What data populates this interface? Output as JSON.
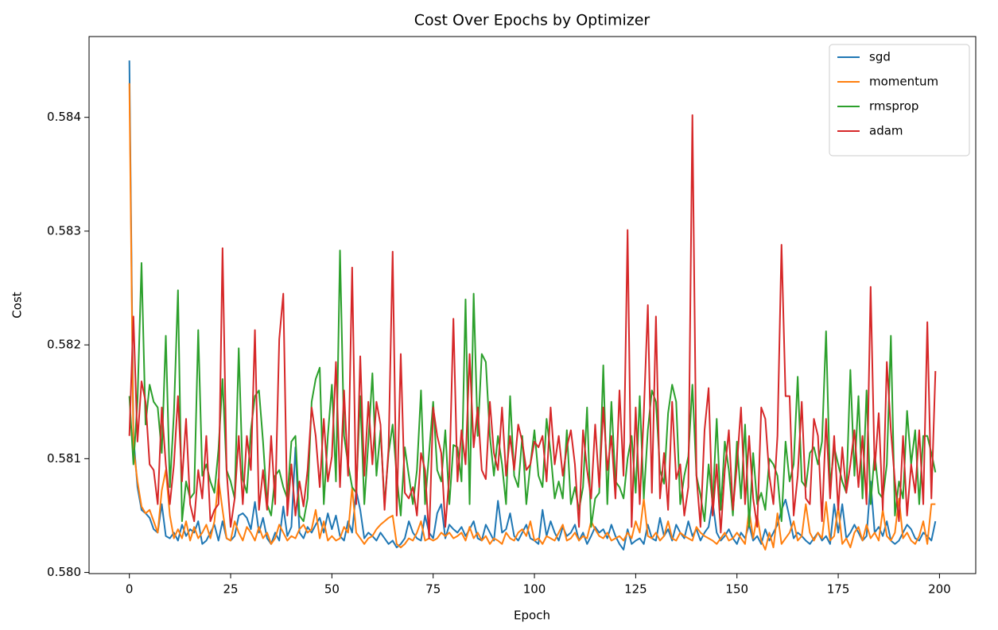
{
  "chart_data": {
    "type": "line",
    "title": "Cost Over Epochs by Optimizer",
    "xlabel": "Epoch",
    "ylabel": "Cost",
    "x": [
      0,
      1,
      2,
      3,
      4,
      5,
      6,
      7,
      8,
      9,
      10,
      11,
      12,
      13,
      14,
      15,
      16,
      17,
      18,
      19,
      20,
      21,
      22,
      23,
      24,
      25,
      26,
      27,
      28,
      29,
      30,
      31,
      32,
      33,
      34,
      35,
      36,
      37,
      38,
      39,
      40,
      41,
      42,
      43,
      44,
      45,
      46,
      47,
      48,
      49,
      50,
      51,
      52,
      53,
      54,
      55,
      56,
      57,
      58,
      59,
      60,
      61,
      62,
      63,
      64,
      65,
      66,
      67,
      68,
      69,
      70,
      71,
      72,
      73,
      74,
      75,
      76,
      77,
      78,
      79,
      80,
      81,
      82,
      83,
      84,
      85,
      86,
      87,
      88,
      89,
      90,
      91,
      92,
      93,
      94,
      95,
      96,
      97,
      98,
      99,
      100,
      101,
      102,
      103,
      104,
      105,
      106,
      107,
      108,
      109,
      110,
      111,
      112,
      113,
      114,
      115,
      116,
      117,
      118,
      119,
      120,
      121,
      122,
      123,
      124,
      125,
      126,
      127,
      128,
      129,
      130,
      131,
      132,
      133,
      134,
      135,
      136,
      137,
      138,
      139,
      140,
      141,
      142,
      143,
      144,
      145,
      146,
      147,
      148,
      149,
      150,
      151,
      152,
      153,
      154,
      155,
      156,
      157,
      158,
      159,
      160,
      161,
      162,
      163,
      164,
      165,
      166,
      167,
      168,
      169,
      170,
      171,
      172,
      173,
      174,
      175,
      176,
      177,
      178,
      179,
      180,
      181,
      182,
      183,
      184,
      185,
      186,
      187,
      188,
      189,
      190,
      191,
      192,
      193,
      194,
      195,
      196,
      197,
      198,
      199
    ],
    "series": [
      {
        "name": "sgd",
        "color": "#1f77b4",
        "values": [
          0.5845,
          0.5812,
          0.58075,
          0.58055,
          0.58052,
          0.58048,
          0.58038,
          0.58035,
          0.5806,
          0.58032,
          0.5803,
          0.58035,
          0.58028,
          0.58042,
          0.58032,
          0.58038,
          0.58035,
          0.58045,
          0.58025,
          0.58028,
          0.58035,
          0.58042,
          0.58028,
          0.58045,
          0.5803,
          0.58028,
          0.58032,
          0.5805,
          0.58052,
          0.58048,
          0.58038,
          0.58062,
          0.58035,
          0.58048,
          0.5803,
          0.58025,
          0.58035,
          0.58028,
          0.58058,
          0.58032,
          0.5804,
          0.5811,
          0.58035,
          0.5803,
          0.5804,
          0.58035,
          0.58042,
          0.58048,
          0.58035,
          0.58052,
          0.58038,
          0.5805,
          0.58032,
          0.58028,
          0.58045,
          0.58035,
          0.58072,
          0.58055,
          0.5803,
          0.58035,
          0.58032,
          0.58028,
          0.58035,
          0.5803,
          0.58025,
          0.58028,
          0.58022,
          0.58025,
          0.5803,
          0.58045,
          0.58035,
          0.5803,
          0.58028,
          0.5805,
          0.58035,
          0.5803,
          0.58052,
          0.5806,
          0.5803,
          0.58042,
          0.58038,
          0.58035,
          0.5804,
          0.58032,
          0.58038,
          0.58045,
          0.5803,
          0.58028,
          0.58042,
          0.58035,
          0.58028,
          0.58063,
          0.58035,
          0.58038,
          0.58052,
          0.58032,
          0.58028,
          0.58035,
          0.58042,
          0.5803,
          0.58028,
          0.58025,
          0.58055,
          0.58032,
          0.58045,
          0.58035,
          0.58028,
          0.5804,
          0.58032,
          0.58035,
          0.58042,
          0.58028,
          0.58035,
          0.58025,
          0.58032,
          0.5804,
          0.58035,
          0.58038,
          0.5803,
          0.58042,
          0.58032,
          0.58025,
          0.5802,
          0.58038,
          0.58025,
          0.58028,
          0.5803,
          0.58025,
          0.58042,
          0.5803,
          0.58028,
          0.58048,
          0.58032,
          0.58038,
          0.58028,
          0.58042,
          0.58035,
          0.5803,
          0.58045,
          0.58032,
          0.58038,
          0.58028,
          0.58035,
          0.5804,
          0.58062,
          0.58035,
          0.58028,
          0.58032,
          0.58038,
          0.5803,
          0.58025,
          0.58035,
          0.5803,
          0.58042,
          0.58028,
          0.58032,
          0.58025,
          0.58038,
          0.58028,
          0.58035,
          0.58042,
          0.58055,
          0.58064,
          0.58048,
          0.5803,
          0.58035,
          0.58032,
          0.58028,
          0.58025,
          0.5803,
          0.58035,
          0.58028,
          0.58032,
          0.58025,
          0.5806,
          0.58035,
          0.5806,
          0.5803,
          0.58035,
          0.58042,
          0.58035,
          0.58028,
          0.58032,
          0.5808,
          0.58035,
          0.5804,
          0.58032,
          0.58045,
          0.58028,
          0.58025,
          0.58028,
          0.58035,
          0.58042,
          0.58038,
          0.5803,
          0.58028,
          0.58035,
          0.58032,
          0.58028,
          0.58045
        ]
      },
      {
        "name": "momentum",
        "color": "#ff7f0e",
        "values": [
          0.5843,
          0.5811,
          0.5808,
          0.58058,
          0.58052,
          0.58055,
          0.58045,
          0.58035,
          0.58072,
          0.5809,
          0.5805,
          0.5803,
          0.58038,
          0.5803,
          0.58045,
          0.58028,
          0.5804,
          0.5803,
          0.58035,
          0.58042,
          0.5803,
          0.58045,
          0.58082,
          0.58055,
          0.5803,
          0.58028,
          0.58045,
          0.58035,
          0.58028,
          0.5804,
          0.58035,
          0.58028,
          0.5804,
          0.5803,
          0.58035,
          0.58025,
          0.5803,
          0.58042,
          0.58035,
          0.58028,
          0.58032,
          0.5803,
          0.58038,
          0.58042,
          0.58035,
          0.58038,
          0.58055,
          0.5803,
          0.58045,
          0.58028,
          0.58032,
          0.58028,
          0.5803,
          0.5804,
          0.58035,
          0.58075,
          0.58035,
          0.5803,
          0.58025,
          0.5803,
          0.58032,
          0.58038,
          0.58042,
          0.58045,
          0.58048,
          0.5805,
          0.58025,
          0.58022,
          0.58025,
          0.5803,
          0.58028,
          0.58035,
          0.58045,
          0.58028,
          0.5803,
          0.58028,
          0.5803,
          0.58035,
          0.58032,
          0.58035,
          0.5803,
          0.58032,
          0.58035,
          0.58028,
          0.5804,
          0.5803,
          0.58035,
          0.58028,
          0.58032,
          0.58025,
          0.5803,
          0.58028,
          0.58025,
          0.58035,
          0.5803,
          0.58028,
          0.58035,
          0.58038,
          0.58032,
          0.58045,
          0.58028,
          0.5803,
          0.58025,
          0.58032,
          0.5803,
          0.58028,
          0.58035,
          0.58042,
          0.58028,
          0.5803,
          0.58035,
          0.58028,
          0.58032,
          0.5803,
          0.58045,
          0.58038,
          0.58032,
          0.5803,
          0.58035,
          0.58028,
          0.5803,
          0.58032,
          0.58028,
          0.58035,
          0.5803,
          0.58045,
          0.58035,
          0.58065,
          0.58032,
          0.5803,
          0.58035,
          0.58028,
          0.58032,
          0.58045,
          0.5803,
          0.58028,
          0.58035,
          0.58032,
          0.5803,
          0.58028,
          0.5804,
          0.58035,
          0.58032,
          0.5803,
          0.58028,
          0.58025,
          0.5803,
          0.58035,
          0.58028,
          0.5803,
          0.58035,
          0.5803,
          0.58025,
          0.58055,
          0.5803,
          0.5805,
          0.58028,
          0.5802,
          0.58035,
          0.58022,
          0.58052,
          0.58025,
          0.5803,
          0.58035,
          0.58045,
          0.58028,
          0.58032,
          0.5806,
          0.58035,
          0.58028,
          0.58035,
          0.5803,
          0.58062,
          0.58028,
          0.58032,
          0.58058,
          0.58025,
          0.5803,
          0.58022,
          0.58035,
          0.5804,
          0.58028,
          0.58042,
          0.5803,
          0.58035,
          0.58028,
          0.58055,
          0.58032,
          0.58028,
          0.58035,
          0.58065,
          0.5803,
          0.58035,
          0.58028,
          0.58025,
          0.58032,
          0.58045,
          0.58025,
          0.5806,
          0.5806
        ]
      },
      {
        "name": "rmsprop",
        "color": "#2ca02c",
        "values": [
          0.58155,
          0.58095,
          0.5815,
          0.58272,
          0.5813,
          0.58165,
          0.5815,
          0.58145,
          0.58105,
          0.58208,
          0.58075,
          0.5814,
          0.58248,
          0.58045,
          0.5808,
          0.58065,
          0.5807,
          0.58213,
          0.58085,
          0.58095,
          0.5808,
          0.5807,
          0.58108,
          0.5817,
          0.5809,
          0.5808,
          0.58065,
          0.58197,
          0.58082,
          0.5807,
          0.58125,
          0.58155,
          0.5816,
          0.58115,
          0.5806,
          0.5805,
          0.58085,
          0.5809,
          0.58075,
          0.58065,
          0.58115,
          0.5812,
          0.5805,
          0.58045,
          0.58065,
          0.5815,
          0.5817,
          0.5818,
          0.5806,
          0.5812,
          0.58165,
          0.5808,
          0.58283,
          0.5812,
          0.58095,
          0.58075,
          0.5807,
          0.58155,
          0.5806,
          0.58115,
          0.58175,
          0.58085,
          0.58125,
          0.5806,
          0.58105,
          0.5813,
          0.58085,
          0.5805,
          0.5811,
          0.58085,
          0.5806,
          0.5809,
          0.5816,
          0.5806,
          0.58105,
          0.5815,
          0.5809,
          0.5808,
          0.58125,
          0.5806,
          0.58112,
          0.5811,
          0.5808,
          0.5824,
          0.5806,
          0.58245,
          0.5812,
          0.58192,
          0.58185,
          0.5812,
          0.58085,
          0.5812,
          0.58095,
          0.5806,
          0.58155,
          0.58085,
          0.58075,
          0.5812,
          0.5806,
          0.58095,
          0.58125,
          0.58085,
          0.58075,
          0.58135,
          0.58105,
          0.58065,
          0.5808,
          0.58065,
          0.58125,
          0.5806,
          0.58075,
          0.58055,
          0.58075,
          0.58145,
          0.5804,
          0.58065,
          0.5807,
          0.58182,
          0.5806,
          0.5815,
          0.5808,
          0.58075,
          0.58065,
          0.581,
          0.5812,
          0.5807,
          0.58155,
          0.58065,
          0.58125,
          0.5816,
          0.5815,
          0.5809,
          0.58078,
          0.5814,
          0.58165,
          0.5815,
          0.5806,
          0.58085,
          0.58102,
          0.58165,
          0.58085,
          0.58068,
          0.58045,
          0.58095,
          0.5806,
          0.58135,
          0.58055,
          0.58115,
          0.5809,
          0.5805,
          0.58115,
          0.58065,
          0.5813,
          0.5804,
          0.58105,
          0.5806,
          0.5807,
          0.58055,
          0.581,
          0.58095,
          0.58085,
          0.58045,
          0.58115,
          0.5808,
          0.58095,
          0.58172,
          0.5808,
          0.58075,
          0.58105,
          0.5811,
          0.58095,
          0.58115,
          0.58212,
          0.58075,
          0.5811,
          0.58095,
          0.5808,
          0.5807,
          0.58178,
          0.58085,
          0.58155,
          0.58065,
          0.5816,
          0.5806,
          0.58105,
          0.5807,
          0.58065,
          0.58095,
          0.58208,
          0.5805,
          0.5808,
          0.58065,
          0.58142,
          0.58095,
          0.58125,
          0.5806,
          0.5812,
          0.5812,
          0.58105,
          0.58088
        ]
      },
      {
        "name": "adam",
        "color": "#d62728",
        "values": [
          0.5812,
          0.58225,
          0.58115,
          0.58168,
          0.5815,
          0.58095,
          0.5809,
          0.5806,
          0.58145,
          0.58095,
          0.5806,
          0.58095,
          0.58155,
          0.5808,
          0.58135,
          0.5806,
          0.58045,
          0.5809,
          0.58065,
          0.5812,
          0.58045,
          0.58055,
          0.5806,
          0.58285,
          0.5809,
          0.5804,
          0.58065,
          0.5812,
          0.5806,
          0.5812,
          0.5809,
          0.58213,
          0.58055,
          0.5809,
          0.58055,
          0.5812,
          0.5806,
          0.58205,
          0.58245,
          0.5805,
          0.58095,
          0.5805,
          0.5808,
          0.58058,
          0.5809,
          0.58145,
          0.5812,
          0.58075,
          0.58135,
          0.5808,
          0.58102,
          0.58185,
          0.58075,
          0.5816,
          0.58085,
          0.58268,
          0.5806,
          0.5819,
          0.58085,
          0.5815,
          0.58095,
          0.5815,
          0.5813,
          0.58055,
          0.5811,
          0.58282,
          0.5805,
          0.58192,
          0.5807,
          0.58065,
          0.58075,
          0.5805,
          0.58105,
          0.5809,
          0.5803,
          0.58145,
          0.5812,
          0.58105,
          0.5804,
          0.58085,
          0.58223,
          0.5808,
          0.58125,
          0.58095,
          0.58192,
          0.5811,
          0.58145,
          0.5809,
          0.58082,
          0.5815,
          0.58105,
          0.5809,
          0.58145,
          0.58085,
          0.5812,
          0.5809,
          0.5813,
          0.58115,
          0.5809,
          0.58095,
          0.58115,
          0.5811,
          0.5812,
          0.5808,
          0.58145,
          0.58095,
          0.5812,
          0.58085,
          0.5811,
          0.58125,
          0.58095,
          0.5804,
          0.58125,
          0.5809,
          0.58065,
          0.5813,
          0.58075,
          0.58145,
          0.5809,
          0.5812,
          0.58065,
          0.5816,
          0.58085,
          0.58301,
          0.5804,
          0.58145,
          0.5806,
          0.5814,
          0.58235,
          0.5807,
          0.58225,
          0.58065,
          0.58105,
          0.58055,
          0.5815,
          0.58082,
          0.58095,
          0.5805,
          0.58075,
          0.58402,
          0.58085,
          0.5804,
          0.58125,
          0.58162,
          0.5805,
          0.58095,
          0.58035,
          0.5809,
          0.58125,
          0.58055,
          0.58095,
          0.58145,
          0.5806,
          0.5812,
          0.58065,
          0.5804,
          0.58145,
          0.58135,
          0.58085,
          0.5806,
          0.5812,
          0.58288,
          0.58155,
          0.58155,
          0.5805,
          0.58085,
          0.5815,
          0.58065,
          0.5806,
          0.58135,
          0.5812,
          0.58045,
          0.58135,
          0.58065,
          0.5812,
          0.58055,
          0.5811,
          0.5807,
          0.58095,
          0.58125,
          0.58075,
          0.5812,
          0.5806,
          0.58251,
          0.5809,
          0.5814,
          0.58055,
          0.58185,
          0.58125,
          0.5808,
          0.58045,
          0.5812,
          0.5805,
          0.58095,
          0.5807,
          0.58125,
          0.5806,
          0.5822,
          0.58065,
          0.58177
        ]
      }
    ],
    "xlim": [
      -9.95,
      208.95
    ],
    "xticks": [
      0,
      25,
      50,
      75,
      100,
      125,
      150,
      175,
      200
    ],
    "ylim": [
      0.57999,
      0.58471
    ],
    "yticks": [
      {
        "value": 0.58,
        "label": "0.580"
      },
      0.581,
      0.582,
      0.583,
      0.584
    ],
    "grid": false,
    "legend": "upper right"
  }
}
